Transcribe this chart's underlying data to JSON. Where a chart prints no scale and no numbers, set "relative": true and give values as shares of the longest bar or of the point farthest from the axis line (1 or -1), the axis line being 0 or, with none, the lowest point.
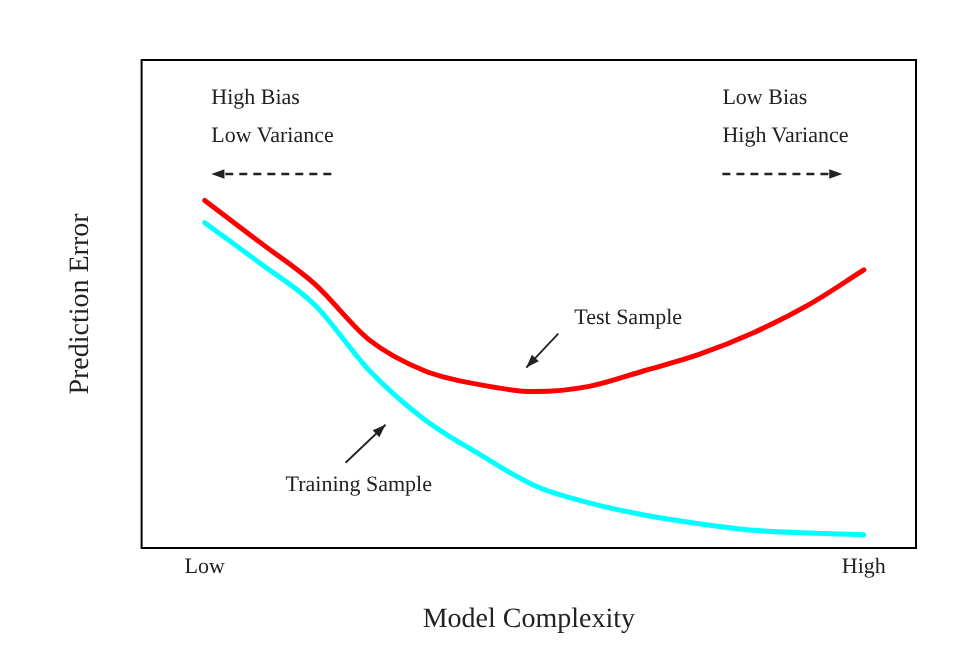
{
  "chart_data": {
    "type": "line",
    "relative": true,
    "xlabel": "Model Complexity",
    "ylabel": "Prediction Error",
    "categories": [
      "Low",
      null,
      null,
      null,
      null,
      null,
      null,
      null,
      null,
      null,
      null,
      null,
      "High"
    ],
    "series": [
      {
        "name": "Test Sample",
        "color": "#ff0000",
        "values": [
          1.0,
          0.88,
          0.76,
          0.598,
          0.51,
          0.47,
          0.45,
          0.465,
          0.51,
          0.557,
          0.62,
          0.7,
          0.8
        ]
      },
      {
        "name": "Training Sample",
        "color": "#00ffff",
        "values": [
          0.936,
          0.82,
          0.7,
          0.51,
          0.37,
          0.27,
          0.18,
          0.13,
          0.095,
          0.07,
          0.051,
          0.043,
          0.038
        ]
      }
    ],
    "annotations": [
      "High Bias\nLow Variance",
      "Low Bias\nHigh Variance"
    ],
    "grid": false,
    "legend": false,
    "marker": "none",
    "line_style": "solid"
  }
}
